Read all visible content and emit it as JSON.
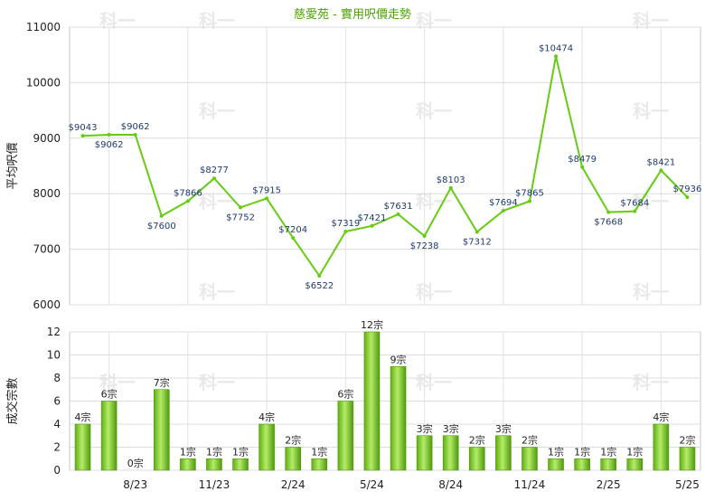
{
  "chart_data": [
    {
      "type": "line",
      "title": "慈愛苑 - 實用呎價走勢",
      "ylabel": "平均呎價",
      "ylim": [
        6000,
        11000
      ],
      "yticks": [
        "6000",
        "7000",
        "8000",
        "9000",
        "10000",
        "11000"
      ],
      "grid": true,
      "color": "#66cc11",
      "series": [
        {
          "values": [
            9043,
            9062,
            9062,
            7600,
            7866,
            8277,
            7752,
            7915,
            7204,
            6522,
            7319,
            7421,
            7631,
            7238,
            8103,
            7312,
            7694,
            7865,
            10474,
            8479,
            7668,
            7684,
            8421,
            7936
          ],
          "labels": [
            "$9043",
            "$9062",
            "$9062",
            "$7600",
            "$7866",
            "$8277",
            "$7752",
            "$7915",
            "$7204",
            "$6522",
            "$7319",
            "$7421",
            "$7631",
            "$7238",
            "$8103",
            "$7312",
            "$7694",
            "$7865",
            "$10474",
            "$8479",
            "$7668",
            "$7684",
            "$8421",
            "$7936"
          ]
        }
      ]
    },
    {
      "type": "bar",
      "ylabel": "成交宗數",
      "ylim": [
        0,
        12
      ],
      "yticks": [
        "0",
        "2",
        "4",
        "6",
        "8",
        "10",
        "12"
      ],
      "grid": true,
      "color": "#77cc22",
      "xticks": [
        "8/23",
        "11/23",
        "2/24",
        "5/24",
        "8/24",
        "11/24",
        "2/25",
        "5/25"
      ],
      "values": [
        4,
        6,
        0,
        7,
        1,
        1,
        1,
        4,
        2,
        1,
        6,
        12,
        9,
        3,
        3,
        2,
        3,
        2,
        1,
        1,
        1,
        1,
        4,
        2
      ],
      "labels": [
        "4宗",
        "6宗",
        "0宗",
        "7宗",
        "1宗",
        "1宗",
        "1宗",
        "4宗",
        "2宗",
        "1宗",
        "6宗",
        "12宗",
        "9宗",
        "3宗",
        "3宗",
        "2宗",
        "3宗",
        "2宗",
        "1宗",
        "1宗",
        "1宗",
        "1宗",
        "4宗",
        "2宗"
      ]
    }
  ],
  "watermark": "科一"
}
